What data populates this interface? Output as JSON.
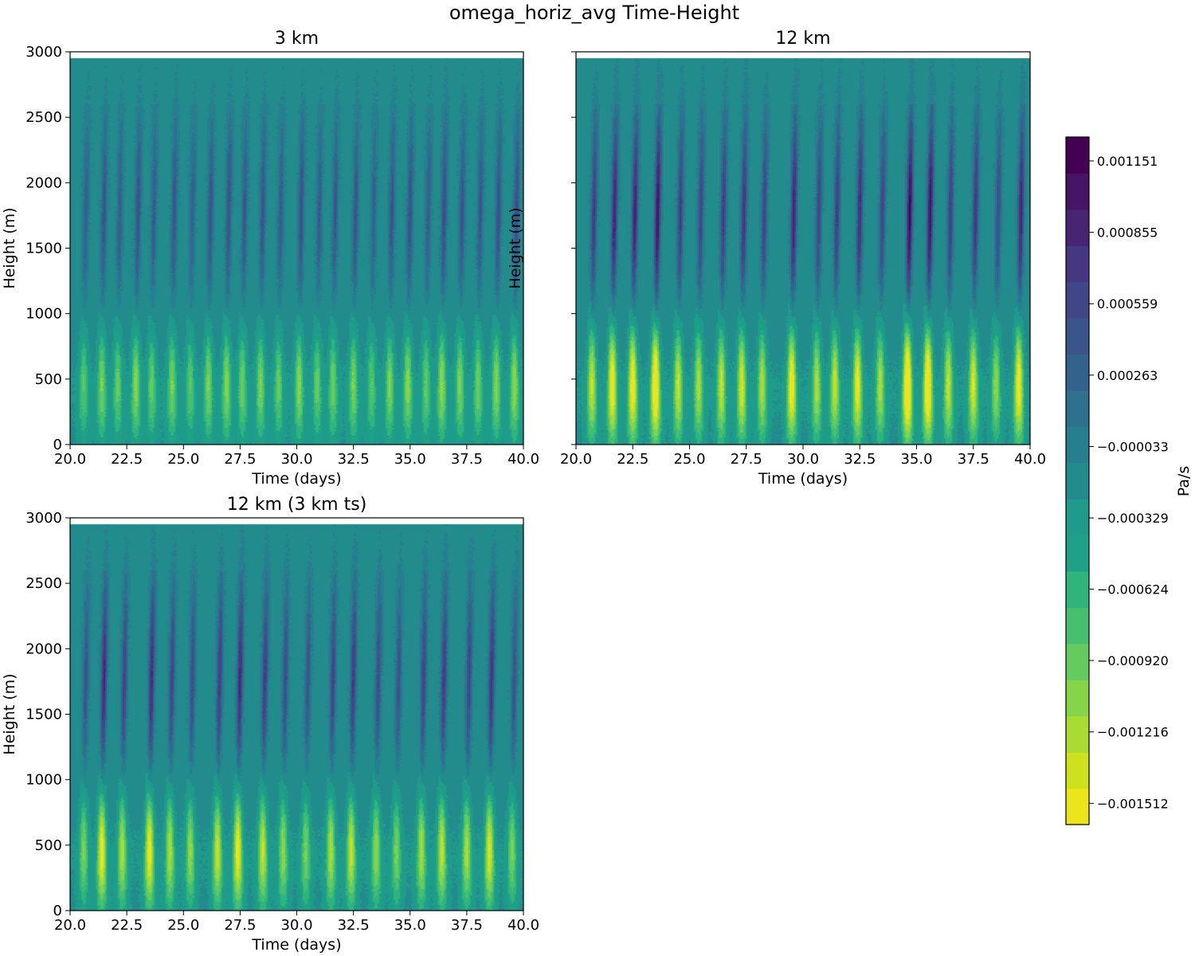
{
  "figure": {
    "title": "omega_horiz_avg Time-Height"
  },
  "colors": {
    "viridis_levels": [
      "#ece51b",
      "#cde11d",
      "#a8db34",
      "#86d549",
      "#65cb5e",
      "#46c06f",
      "#2fb47c",
      "#1fa187",
      "#1e9b8a",
      "#228c8d",
      "#277f8e",
      "#2d718e",
      "#33638d",
      "#39558c",
      "#404688",
      "#453781",
      "#482475",
      "#471466",
      "#440154"
    ]
  },
  "chart_data": [
    {
      "type": "heatmap",
      "title": "3 km",
      "xlabel": "Time (days)",
      "ylabel": "Height (m)",
      "xlim": [
        20,
        40
      ],
      "ylim": [
        0,
        3000
      ],
      "data_ylim": [
        0,
        2950
      ],
      "xticks": [
        20.0,
        22.5,
        25.0,
        27.5,
        30.0,
        32.5,
        35.0,
        37.5,
        40.0
      ],
      "xtick_labels": [
        "20.0",
        "22.5",
        "25.0",
        "27.5",
        "30.0",
        "32.5",
        "35.0",
        "37.5",
        "40.0"
      ],
      "yticks": [
        0,
        500,
        1000,
        1500,
        2000,
        2500,
        3000
      ],
      "ytick_labels": [
        "0",
        "500",
        "1000",
        "1500",
        "2000",
        "2500",
        "3000"
      ],
      "show_yticklabels": true,
      "show_ylabel": true,
      "events": [
        {
          "t": 20.6,
          "a": 0.55
        },
        {
          "t": 21.4,
          "a": 0.7
        },
        {
          "t": 22.1,
          "a": 0.6
        },
        {
          "t": 22.9,
          "a": 0.75
        },
        {
          "t": 23.6,
          "a": 0.6
        },
        {
          "t": 24.5,
          "a": 0.7
        },
        {
          "t": 25.3,
          "a": 0.55
        },
        {
          "t": 26.1,
          "a": 0.7
        },
        {
          "t": 26.9,
          "a": 0.75
        },
        {
          "t": 27.6,
          "a": 0.65
        },
        {
          "t": 28.4,
          "a": 0.7
        },
        {
          "t": 29.2,
          "a": 0.6
        },
        {
          "t": 30.1,
          "a": 0.75
        },
        {
          "t": 30.9,
          "a": 0.6
        },
        {
          "t": 31.6,
          "a": 0.65
        },
        {
          "t": 32.5,
          "a": 0.7
        },
        {
          "t": 33.3,
          "a": 0.55
        },
        {
          "t": 34.1,
          "a": 0.7
        },
        {
          "t": 34.9,
          "a": 0.75
        },
        {
          "t": 35.7,
          "a": 0.6
        },
        {
          "t": 36.4,
          "a": 0.8
        },
        {
          "t": 37.2,
          "a": 0.7
        },
        {
          "t": 38.0,
          "a": 0.65
        },
        {
          "t": 38.8,
          "a": 0.75
        },
        {
          "t": 39.6,
          "a": 0.8
        }
      ]
    },
    {
      "type": "heatmap",
      "title": "12 km",
      "xlabel": "Time (days)",
      "ylabel": "Height (m)",
      "xlim": [
        20,
        40
      ],
      "ylim": [
        0,
        3000
      ],
      "data_ylim": [
        0,
        2950
      ],
      "xticks": [
        20.0,
        22.5,
        25.0,
        27.5,
        30.0,
        32.5,
        35.0,
        37.5,
        40.0
      ],
      "xtick_labels": [
        "20.0",
        "22.5",
        "25.0",
        "27.5",
        "30.0",
        "32.5",
        "35.0",
        "37.5",
        "40.0"
      ],
      "yticks": [
        0,
        500,
        1000,
        1500,
        2000,
        2500,
        3000
      ],
      "ytick_labels": [
        "0",
        "500",
        "1000",
        "1500",
        "2000",
        "2500",
        "3000"
      ],
      "show_yticklabels": false,
      "show_ylabel": true,
      "events": [
        {
          "t": 20.7,
          "a": 1.0
        },
        {
          "t": 21.6,
          "a": 1.3
        },
        {
          "t": 22.5,
          "a": 1.3
        },
        {
          "t": 23.5,
          "a": 1.5
        },
        {
          "t": 24.5,
          "a": 1.0
        },
        {
          "t": 25.4,
          "a": 0.9
        },
        {
          "t": 26.4,
          "a": 1.0
        },
        {
          "t": 27.3,
          "a": 1.1
        },
        {
          "t": 28.2,
          "a": 0.9
        },
        {
          "t": 29.5,
          "a": 1.3
        },
        {
          "t": 30.6,
          "a": 0.9
        },
        {
          "t": 31.4,
          "a": 1.0
        },
        {
          "t": 32.4,
          "a": 1.2
        },
        {
          "t": 33.4,
          "a": 0.9
        },
        {
          "t": 34.6,
          "a": 1.6
        },
        {
          "t": 35.5,
          "a": 1.5
        },
        {
          "t": 36.4,
          "a": 1.0
        },
        {
          "t": 37.5,
          "a": 1.1
        },
        {
          "t": 38.5,
          "a": 0.8
        },
        {
          "t": 39.5,
          "a": 1.3
        }
      ]
    },
    {
      "type": "heatmap",
      "title": "12 km (3 km ts)",
      "xlabel": "Time (days)",
      "ylabel": "Height (m)",
      "xlim": [
        20,
        40
      ],
      "ylim": [
        0,
        3000
      ],
      "data_ylim": [
        0,
        2950
      ],
      "xticks": [
        20.0,
        22.5,
        25.0,
        27.5,
        30.0,
        32.5,
        35.0,
        37.5,
        40.0
      ],
      "xtick_labels": [
        "20.0",
        "22.5",
        "25.0",
        "27.5",
        "30.0",
        "32.5",
        "35.0",
        "37.5",
        "40.0"
      ],
      "yticks": [
        0,
        500,
        1000,
        1500,
        2000,
        2500,
        3000
      ],
      "ytick_labels": [
        "0",
        "500",
        "1000",
        "1500",
        "2000",
        "2500",
        "3000"
      ],
      "show_yticklabels": true,
      "show_ylabel": true,
      "events": [
        {
          "t": 20.6,
          "a": 0.7
        },
        {
          "t": 21.4,
          "a": 1.2
        },
        {
          "t": 22.3,
          "a": 0.9
        },
        {
          "t": 23.5,
          "a": 1.2
        },
        {
          "t": 24.4,
          "a": 0.9
        },
        {
          "t": 25.3,
          "a": 0.8
        },
        {
          "t": 26.5,
          "a": 1.0
        },
        {
          "t": 27.4,
          "a": 1.2
        },
        {
          "t": 28.5,
          "a": 1.0
        },
        {
          "t": 29.4,
          "a": 0.8
        },
        {
          "t": 30.4,
          "a": 0.7
        },
        {
          "t": 31.5,
          "a": 0.9
        },
        {
          "t": 32.4,
          "a": 1.0
        },
        {
          "t": 33.5,
          "a": 0.8
        },
        {
          "t": 34.4,
          "a": 0.7
        },
        {
          "t": 35.5,
          "a": 0.9
        },
        {
          "t": 36.4,
          "a": 1.0
        },
        {
          "t": 37.5,
          "a": 0.9
        },
        {
          "t": 38.5,
          "a": 1.1
        },
        {
          "t": 39.5,
          "a": 0.7
        }
      ]
    }
  ],
  "colorbar": {
    "label": "Pa/s",
    "vmin": -0.0016,
    "vmax": 0.00125,
    "levels": 19,
    "tick_values": [
      0.001151,
      0.000855,
      0.000559,
      0.000263,
      -3.3e-05,
      -0.000329,
      -0.000624,
      -0.00092,
      -0.001216,
      -0.001512
    ],
    "tick_labels": [
      "0.001151",
      "0.000855",
      "0.000559",
      "0.000263",
      "−0.000033",
      "−0.000329",
      "−0.000624",
      "−0.000920",
      "−0.001216",
      "−0.001512"
    ]
  }
}
